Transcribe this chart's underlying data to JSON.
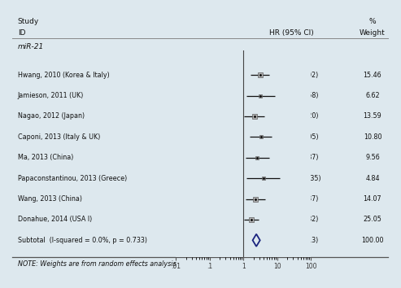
{
  "title_col1": "Study",
  "title_col2": "%",
  "subtitle_col1": "ID",
  "subtitle_col2": "HR (95% CI)",
  "subtitle_col3": "Weight",
  "group_label": "miR-21",
  "studies": [
    {
      "label": "Hwang, 2010 (Korea & Italy)",
      "hr": 3.16,
      "ci_low": 1.67,
      "ci_high": 6.02,
      "weight": 15.46
    },
    {
      "label": "Jamieson, 2011 (UK)",
      "hr": 3.22,
      "ci_low": 1.21,
      "ci_high": 8.58,
      "weight": 6.62
    },
    {
      "label": "Nagao, 2012 (Japan)",
      "hr": 2.12,
      "ci_low": 1.07,
      "ci_high": 4.2,
      "weight": 13.59
    },
    {
      "label": "Caponi, 2013 (Italy & UK)",
      "hr": 3.28,
      "ci_low": 1.52,
      "ci_high": 7.05,
      "weight": 10.8
    },
    {
      "label": "Ma, 2013 (China)",
      "hr": 2.6,
      "ci_low": 1.15,
      "ci_high": 5.87,
      "weight": 9.56
    },
    {
      "label": "Papaconstantinou, 2013 (Greece)",
      "hr": 3.93,
      "ci_low": 1.25,
      "ci_high": 12.35,
      "weight": 4.84
    },
    {
      "label": "Wang, 2013 (China)",
      "hr": 2.24,
      "ci_low": 1.14,
      "ci_high": 4.37,
      "weight": 14.07
    },
    {
      "label": "Donahue, 2014 (USA I)",
      "hr": 1.7,
      "ci_low": 1.03,
      "ci_high": 2.82,
      "weight": 25.05
    }
  ],
  "subtotal": {
    "label": "Subtotal  (I-squared = 0.0%, p = 0.733)",
    "hr": 2.43,
    "ci_low": 1.89,
    "ci_high": 3.13,
    "weight": 100.0
  },
  "note": "NOTE: Weights are from random effects analysis",
  "xlog_ticks": [
    0.01,
    0.1,
    1,
    10,
    100
  ],
  "xlog_tick_labels": [
    ".01",
    ".1",
    "1",
    "10",
    "100"
  ],
  "xmin": 0.01,
  "xmax": 100,
  "vline_x": 1,
  "box_color": "#b0b0b0",
  "diamond_facecolor": "none",
  "diamond_edgecolor": "#1a237e",
  "ci_line_color": "#111111",
  "text_color": "#111111",
  "bg_color": "#dde8ee",
  "plot_bg_color": "#dde8ee"
}
